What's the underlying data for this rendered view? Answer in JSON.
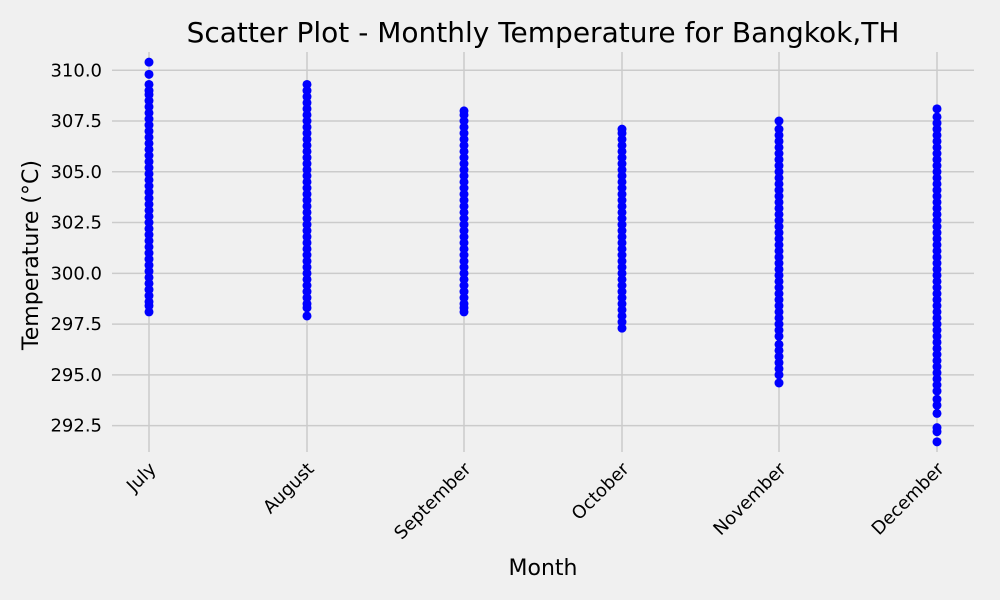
{
  "chart_data": {
    "type": "scatter",
    "title": "Scatter Plot - Monthly Temperature for Bangkok,TH",
    "xlabel": "Month",
    "ylabel": "Temperature (°C)",
    "categories": [
      "July",
      "August",
      "September",
      "October",
      "November",
      "December"
    ],
    "ylim": [
      291.2,
      310.9
    ],
    "yticks": [
      "292.5",
      "295.0",
      "297.5",
      "300.0",
      "302.5",
      "305.0",
      "307.5",
      "310.0"
    ],
    "grid": true,
    "series": [
      {
        "values": [
          [
            298.1,
            298.4,
            298.6,
            298.9,
            299.2,
            299.5,
            299.8,
            300.1,
            300.4,
            300.7,
            301.0,
            301.3,
            301.6,
            301.9,
            302.2,
            302.5,
            302.8,
            303.1,
            303.4,
            303.7,
            304.0,
            304.3,
            304.6,
            304.9,
            305.2,
            305.5,
            305.8,
            306.1,
            306.4,
            306.7,
            307.0,
            307.3,
            307.6,
            307.9,
            308.2,
            308.5,
            308.8,
            309.0,
            309.3,
            309.8,
            310.4
          ],
          [
            297.9,
            298.3,
            298.5,
            298.8,
            299.1,
            299.4,
            299.7,
            300.0,
            300.3,
            300.6,
            300.9,
            301.2,
            301.5,
            301.8,
            302.1,
            302.4,
            302.7,
            303.0,
            303.3,
            303.6,
            303.9,
            304.2,
            304.5,
            304.8,
            305.1,
            305.4,
            305.7,
            306.0,
            306.3,
            306.6,
            306.9,
            307.2,
            307.5,
            307.8,
            308.1,
            308.4,
            308.7,
            309.0,
            309.3
          ],
          [
            298.1,
            298.3,
            298.5,
            298.8,
            299.1,
            299.4,
            299.7,
            300.0,
            300.3,
            300.6,
            300.9,
            301.2,
            301.5,
            301.8,
            302.1,
            302.4,
            302.7,
            303.0,
            303.3,
            303.6,
            303.9,
            304.2,
            304.5,
            304.8,
            305.1,
            305.4,
            305.7,
            306.0,
            306.3,
            306.6,
            306.9,
            307.2,
            307.5,
            307.8,
            308.0
          ],
          [
            297.3,
            297.6,
            297.9,
            298.2,
            298.5,
            298.8,
            299.1,
            299.4,
            299.7,
            300.0,
            300.3,
            300.6,
            300.9,
            301.2,
            301.5,
            301.8,
            302.1,
            302.4,
            302.7,
            303.0,
            303.3,
            303.6,
            303.9,
            304.2,
            304.5,
            304.8,
            305.1,
            305.4,
            305.7,
            306.0,
            306.3,
            306.6,
            306.9,
            307.1
          ],
          [
            294.6,
            295.0,
            295.3,
            295.6,
            295.9,
            296.2,
            296.5,
            296.9,
            297.2,
            297.5,
            297.8,
            298.1,
            298.4,
            298.7,
            299.0,
            299.3,
            299.6,
            299.9,
            300.2,
            300.5,
            300.8,
            301.1,
            301.4,
            301.7,
            302.0,
            302.3,
            302.6,
            302.9,
            303.2,
            303.5,
            303.8,
            304.1,
            304.4,
            304.7,
            305.0,
            305.3,
            305.6,
            305.9,
            306.2,
            306.5,
            306.8,
            307.1,
            307.5
          ],
          [
            291.7,
            292.2,
            292.4,
            293.1,
            293.5,
            293.8,
            294.2,
            294.5,
            294.8,
            295.1,
            295.4,
            295.7,
            296.0,
            296.3,
            296.6,
            296.9,
            297.2,
            297.5,
            297.8,
            298.1,
            298.4,
            298.7,
            299.0,
            299.3,
            299.6,
            299.9,
            300.2,
            300.5,
            300.8,
            301.1,
            301.4,
            301.7,
            302.0,
            302.3,
            302.6,
            302.9,
            303.2,
            303.5,
            303.8,
            304.1,
            304.4,
            304.7,
            305.0,
            305.3,
            305.6,
            305.9,
            306.2,
            306.5,
            306.8,
            307.1,
            307.4,
            307.7,
            308.1
          ]
        ],
        "color": "#0000ff"
      }
    ]
  },
  "colors": {
    "background": "#f0f0f0",
    "grid": "#cbcbcb",
    "marker": "#0000ff",
    "text": "#000000"
  }
}
